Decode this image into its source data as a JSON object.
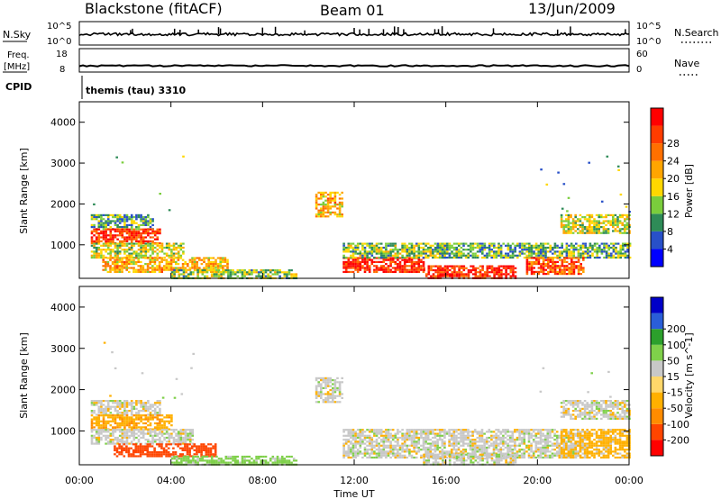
{
  "header": {
    "station": "Blackstone (fitACF)",
    "beam": "Beam 01",
    "date": "13/Jun/2009"
  },
  "panels": {
    "nsky_label": "N.Sky",
    "nsky_top": "10^5",
    "nsky_bottom": "10^0",
    "nsearch_label": "N.Search",
    "nsearch_top": "10^5",
    "nsearch_bottom": "10^0",
    "freq_label": "Freq.",
    "freq_unit": "[MHz]",
    "freq_top": "18",
    "freq_bottom": "8",
    "nave_label": "Nave",
    "nave_top": "60",
    "nave_bottom": "0",
    "cpid_label": "CPID",
    "cpid_value": "themis (tau) 3310"
  },
  "colors": {
    "power": [
      "#0000ff",
      "#2850c8",
      "#2e8b57",
      "#7acd3c",
      "#ffd700",
      "#ffa500",
      "#ff7000",
      "#ff3c00",
      "#ff0000"
    ],
    "velocity": [
      "#ff0000",
      "#ff4500",
      "#ff8c00",
      "#ffb000",
      "#ffd76a",
      "#c8c8c8",
      "#7fd04a",
      "#2ca02c",
      "#2a5ed8",
      "#0000c8"
    ]
  },
  "chart_data": [
    {
      "type": "heatmap",
      "name": "power",
      "ylabel": "Slant Range [km]",
      "xlim": [
        "00:00",
        "00:00"
      ],
      "ylim": [
        180,
        4500
      ],
      "yticks": [
        "1000",
        "2000",
        "3000",
        "4000"
      ],
      "colorbar_label": "Power [dB]",
      "colorbar_ticks": [
        "4",
        "8",
        "12",
        "16",
        "20",
        "24",
        "28"
      ],
      "colorbar_range": [
        0,
        30
      ],
      "regions": [
        {
          "t": [
            0.5,
            3.2
          ],
          "r": [
            1400,
            1750
          ],
          "v": 10
        },
        {
          "t": [
            0.5,
            3.5
          ],
          "r": [
            1050,
            1400
          ],
          "v": 26
        },
        {
          "t": [
            0.5,
            4.5
          ],
          "r": [
            700,
            1050
          ],
          "v": 14
        },
        {
          "t": [
            1.0,
            6.5
          ],
          "r": [
            350,
            700
          ],
          "v": 18
        },
        {
          "t": [
            4.0,
            9.5
          ],
          "r": [
            180,
            400
          ],
          "v": 12
        },
        {
          "t": [
            10.3,
            11.5
          ],
          "r": [
            1700,
            2300
          ],
          "v": 18
        },
        {
          "t": [
            11.5,
            15.0
          ],
          "r": [
            350,
            700
          ],
          "v": 27
        },
        {
          "t": [
            11.5,
            16.0
          ],
          "r": [
            700,
            1050
          ],
          "v": 12
        },
        {
          "t": [
            15.0,
            19.0
          ],
          "r": [
            180,
            500
          ],
          "v": 27
        },
        {
          "t": [
            15.5,
            24.0
          ],
          "r": [
            700,
            1050
          ],
          "v": 10
        },
        {
          "t": [
            21.0,
            24.0
          ],
          "r": [
            1300,
            1750
          ],
          "v": 14
        },
        {
          "t": [
            19.5,
            22.0
          ],
          "r": [
            300,
            700
          ],
          "v": 24
        }
      ]
    },
    {
      "type": "heatmap",
      "name": "velocity",
      "ylabel": "Slant Range [km]",
      "xlabel": "Time UT",
      "xticks": [
        "00:00",
        "04:00",
        "08:00",
        "12:00",
        "16:00",
        "20:00",
        "00:00"
      ],
      "ylim": [
        180,
        4500
      ],
      "yticks": [
        "1000",
        "2000",
        "3000",
        "4000"
      ],
      "colorbar_label": "Velocity [m s^-1]",
      "colorbar_ticks": [
        "-200",
        "-100",
        "-50",
        "-15",
        "15",
        "50",
        "100",
        "200"
      ],
      "regions": [
        {
          "t": [
            0.5,
            3.5
          ],
          "r": [
            1400,
            1750
          ],
          "v": 0
        },
        {
          "t": [
            0.5,
            4.0
          ],
          "r": [
            1050,
            1400
          ],
          "v": -40
        },
        {
          "t": [
            0.5,
            5.0
          ],
          "r": [
            700,
            1050
          ],
          "v": 0
        },
        {
          "t": [
            1.5,
            6.0
          ],
          "r": [
            400,
            700
          ],
          "v": -150
        },
        {
          "t": [
            4.0,
            9.5
          ],
          "r": [
            180,
            400
          ],
          "v": 30
        },
        {
          "t": [
            10.3,
            11.5
          ],
          "r": [
            1700,
            2300
          ],
          "v": 0
        },
        {
          "t": [
            11.5,
            22.0
          ],
          "r": [
            350,
            1050
          ],
          "v": 0
        },
        {
          "t": [
            15.0,
            19.0
          ],
          "r": [
            180,
            450
          ],
          "v": 0
        },
        {
          "t": [
            21.0,
            24.0
          ],
          "r": [
            1300,
            1750
          ],
          "v": 0
        },
        {
          "t": [
            21.0,
            24.0
          ],
          "r": [
            350,
            1050
          ],
          "v": -30
        }
      ]
    }
  ]
}
